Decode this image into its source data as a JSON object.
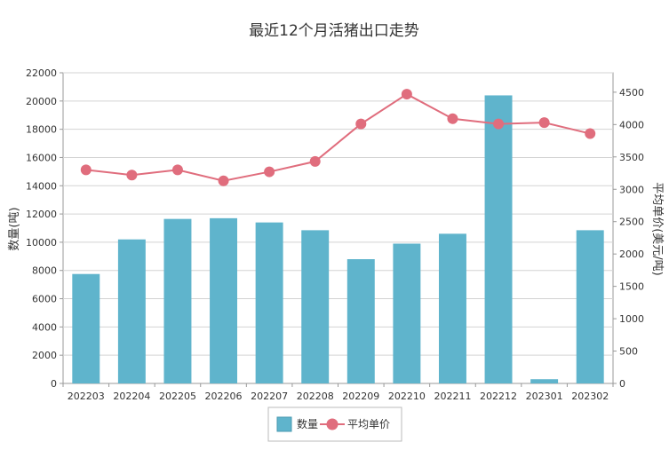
{
  "chart_data": {
    "type": "bar",
    "title": "最近12个月活猪出口走势",
    "categories": [
      "202203",
      "202204",
      "202205",
      "202206",
      "202207",
      "202208",
      "202209",
      "202210",
      "202211",
      "202212",
      "202301",
      "202302"
    ],
    "series": [
      {
        "name": "数量",
        "type": "bar",
        "axis": "left",
        "color": "#5fb4cc",
        "values": [
          7750,
          10200,
          11650,
          11700,
          11400,
          10850,
          8800,
          9900,
          10600,
          20400,
          300,
          10850
        ]
      },
      {
        "name": "平均单价",
        "type": "line",
        "axis": "right",
        "color": "#e06d7d",
        "values": [
          3300,
          3220,
          3300,
          3130,
          3270,
          3430,
          4010,
          4470,
          4090,
          4010,
          4030,
          3860
        ]
      }
    ],
    "y_left": {
      "label": "数量(吨)",
      "ylim": [
        0,
        22000
      ],
      "ticks": [
        0,
        2000,
        4000,
        6000,
        8000,
        10000,
        12000,
        14000,
        16000,
        18000,
        20000,
        22000
      ]
    },
    "y_right": {
      "label": "平均单价(美元/吨)",
      "ylim": [
        0,
        4800
      ],
      "ticks": [
        0,
        500,
        1000,
        1500,
        2000,
        2500,
        3000,
        3500,
        4000,
        4500
      ]
    },
    "grid": true,
    "legend_position": "bottom"
  },
  "colors": {
    "bar": "#5fb4cc",
    "line": "#e06d7d",
    "axis": "#999999",
    "grid": "#d3d3d3",
    "text": "#333333"
  }
}
